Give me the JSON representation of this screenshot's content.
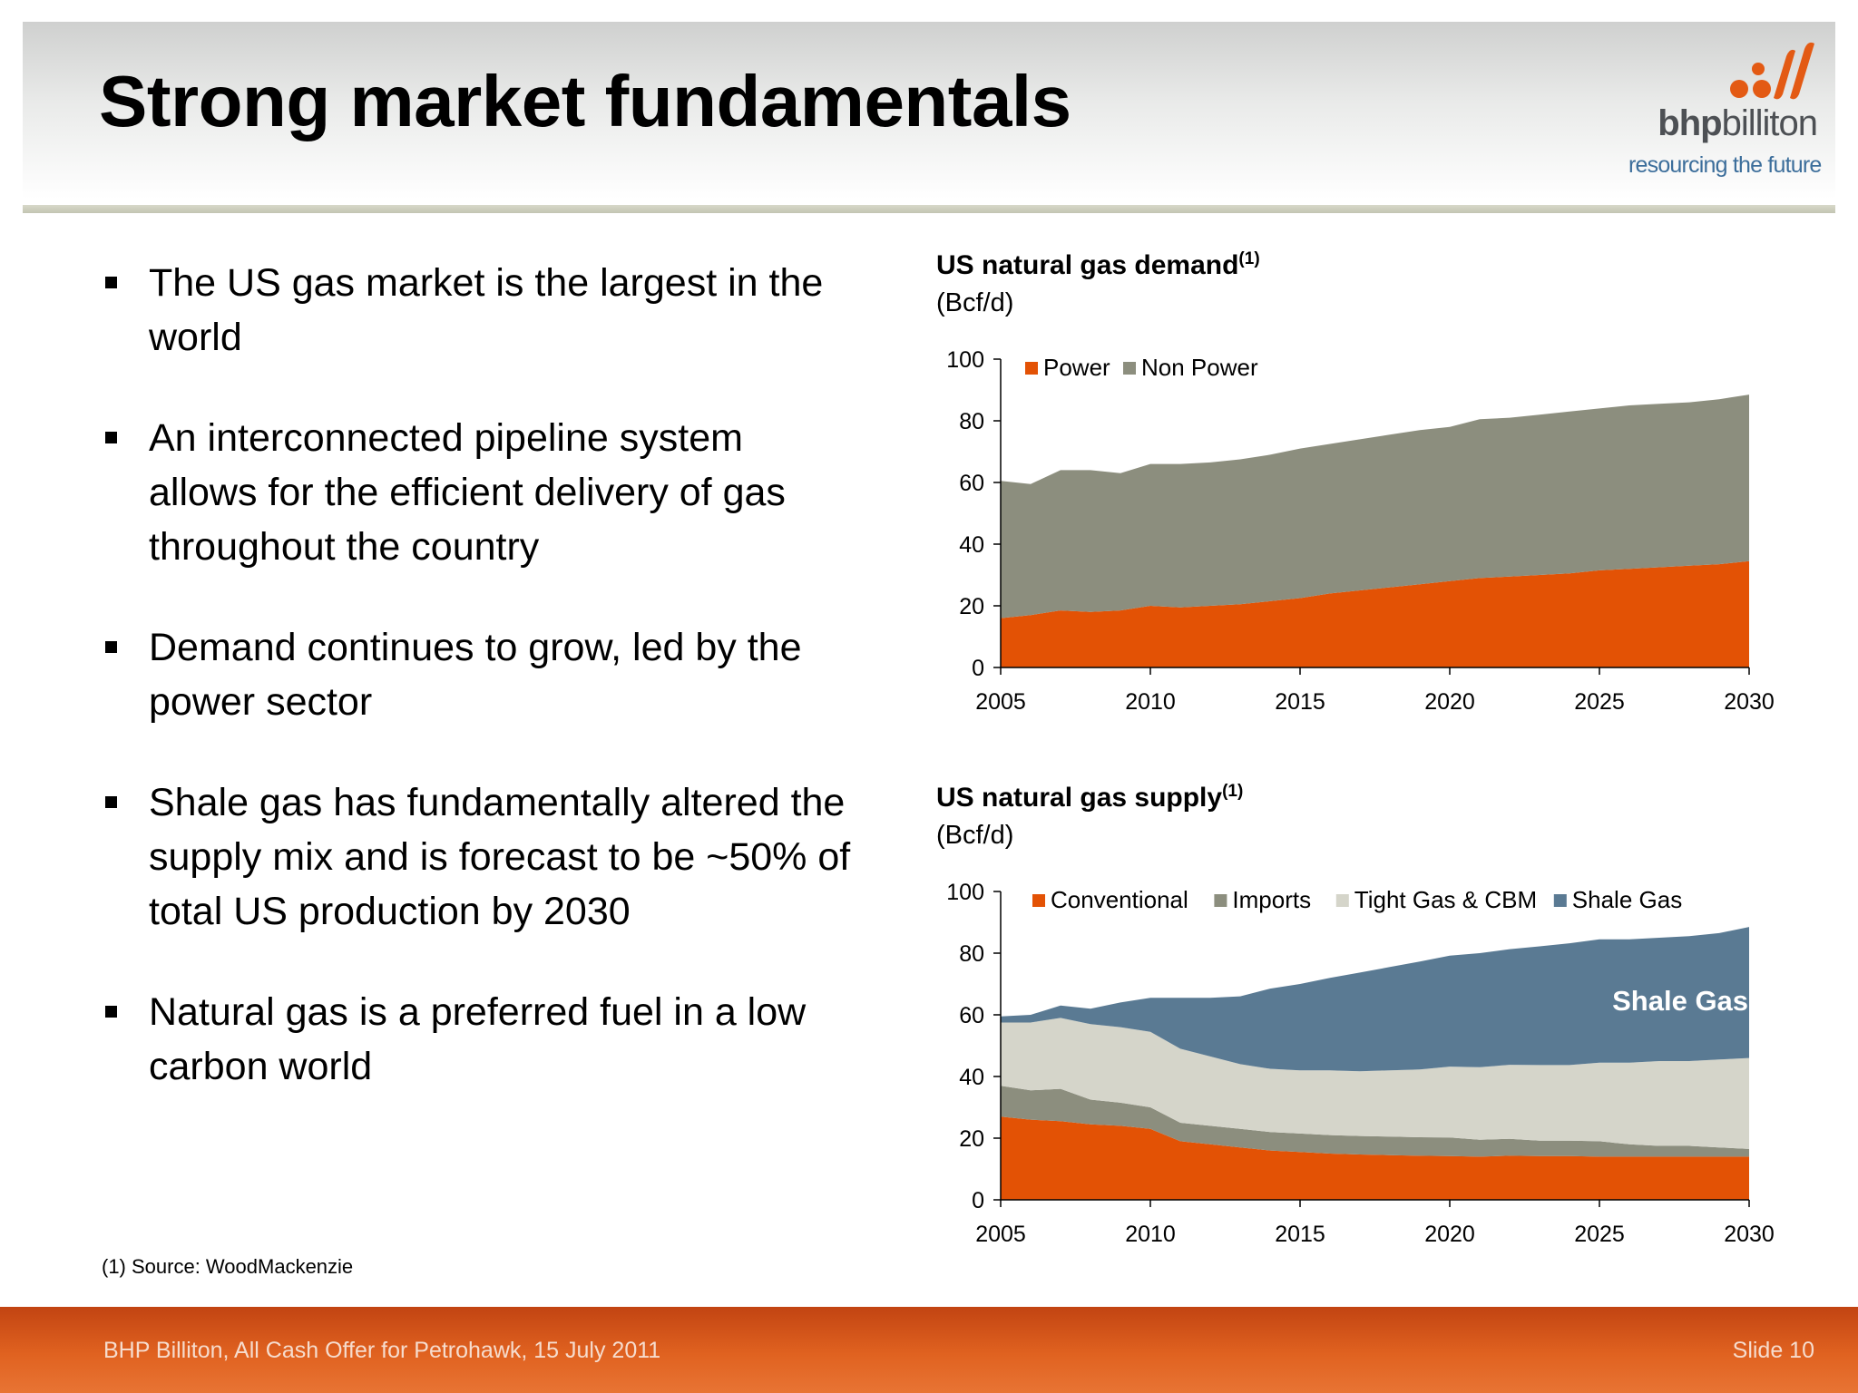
{
  "slide": {
    "title": "Strong market fundamentals",
    "logo": {
      "wordmark_bold": "bhp",
      "wordmark_rest": "billiton",
      "tagline": "resourcing the future"
    },
    "bullets": [
      "The US gas market is the largest in the world",
      "An interconnected pipeline system allows for the efficient delivery of gas throughout the country",
      "Demand continues to grow, led by the power sector",
      "Shale gas has fundamentally altered the supply mix and is forecast to be ~50% of total US production by 2030",
      "Natural gas is a preferred fuel in a low carbon world"
    ],
    "footnote": "(1)  Source:  WoodMackenzie",
    "footer_left": "BHP Billiton, All Cash Offer for Petrohawk, 15 July 2011",
    "footer_right": "Slide 10"
  },
  "chart_data": [
    {
      "type": "area",
      "stacked": true,
      "title": "US natural gas demand",
      "title_superscript": "(1)",
      "unit": "(Bcf/d)",
      "x": [
        2005,
        2006,
        2007,
        2008,
        2009,
        2010,
        2011,
        2012,
        2013,
        2014,
        2015,
        2016,
        2017,
        2018,
        2019,
        2020,
        2021,
        2022,
        2023,
        2024,
        2025,
        2026,
        2027,
        2028,
        2029,
        2030
      ],
      "series": [
        {
          "name": "Power",
          "color": "#e35205",
          "values": [
            16,
            17,
            18.5,
            18,
            18.5,
            20,
            19.5,
            20,
            20.5,
            21.5,
            22.5,
            24,
            25,
            26,
            27,
            28,
            29,
            29.5,
            30,
            30.5,
            31.5,
            32,
            32.5,
            33,
            33.5,
            34.5
          ]
        },
        {
          "name": "Non Power",
          "color": "#8c8e7e",
          "values": [
            44.5,
            42.5,
            45.5,
            46,
            44.5,
            46,
            46.5,
            46.5,
            47,
            47.5,
            48.5,
            48.5,
            49,
            49.5,
            50,
            50,
            51.5,
            51.5,
            52,
            52.5,
            52.5,
            53,
            53,
            53,
            53.5,
            54
          ]
        }
      ],
      "xticks": [
        2005,
        2010,
        2015,
        2020,
        2025,
        2030
      ],
      "yticks": [
        0,
        20,
        40,
        60,
        80,
        100
      ],
      "ylim": [
        0,
        100
      ],
      "legend": "top-left"
    },
    {
      "type": "area",
      "stacked": true,
      "title": "US natural gas supply",
      "title_superscript": "(1)",
      "unit": "(Bcf/d)",
      "annotation": "Shale Gas",
      "x": [
        2005,
        2006,
        2007,
        2008,
        2009,
        2010,
        2011,
        2012,
        2013,
        2014,
        2015,
        2016,
        2017,
        2018,
        2019,
        2020,
        2021,
        2022,
        2023,
        2024,
        2025,
        2026,
        2027,
        2028,
        2029,
        2030
      ],
      "series": [
        {
          "name": "Conventional",
          "color": "#e35205",
          "values": [
            27,
            26,
            25.5,
            24.5,
            24,
            23,
            19,
            18,
            17,
            16,
            15.5,
            15,
            14.7,
            14.5,
            14.3,
            14.2,
            14,
            14.3,
            14.2,
            14.2,
            14,
            14,
            14,
            14,
            14,
            14
          ]
        },
        {
          "name": "Imports",
          "color": "#8c8e7e",
          "values": [
            10,
            9.5,
            10.5,
            8,
            7.5,
            7,
            6,
            6,
            6,
            6,
            6,
            6,
            6,
            6,
            6,
            6,
            5.5,
            5.5,
            5,
            5,
            5,
            4,
            3.5,
            3.5,
            3,
            2.5
          ]
        },
        {
          "name": "Tight Gas & CBM",
          "color": "#d5d5ca",
          "values": [
            20.5,
            22,
            23,
            24.5,
            24.5,
            24.5,
            24,
            22.5,
            21,
            20.5,
            20.5,
            21,
            21,
            21.5,
            22,
            23,
            23.5,
            24,
            24.5,
            24.5,
            25.5,
            26.5,
            27.5,
            27.5,
            28.5,
            29.5
          ]
        },
        {
          "name": "Shale Gas",
          "color": "#5a7a93",
          "values": [
            2,
            2.5,
            4,
            5,
            8,
            11,
            16.5,
            19,
            22,
            26,
            28,
            30,
            32,
            33.5,
            35,
            36,
            37,
            37.5,
            38.5,
            39.5,
            40,
            40,
            40,
            40.5,
            41,
            42.5
          ]
        }
      ],
      "xticks": [
        2005,
        2010,
        2015,
        2020,
        2025,
        2030
      ],
      "yticks": [
        0,
        20,
        40,
        60,
        80,
        100
      ],
      "ylim": [
        0,
        100
      ],
      "legend": "top-left"
    }
  ]
}
